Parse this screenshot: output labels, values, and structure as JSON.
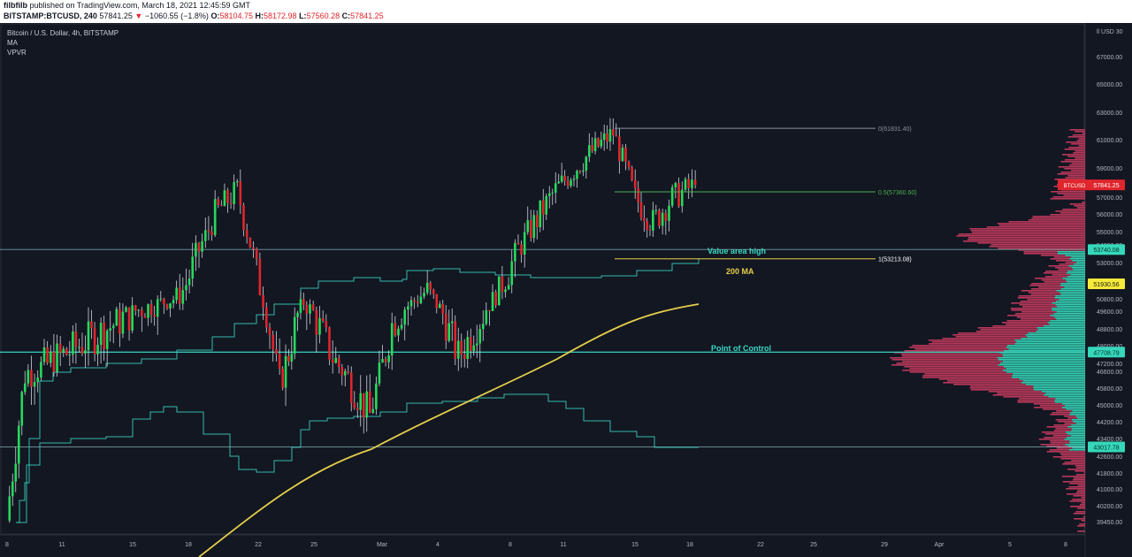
{
  "header": {
    "author": "filbfilb",
    "published_text": "published on TradingView.com, March 18, 2021 12:45:59 GMT",
    "symbol": "BITSTAMP:BTCUSD, 240",
    "last_price": "57841.25",
    "change": "−1060.55 (−1.8%)",
    "open_label": "O:",
    "open": "58104.75",
    "high_label": "H:",
    "high": "58172.98",
    "low_label": "L:",
    "low": "57560.28",
    "close_label": "C:",
    "close": "57841.25"
  },
  "legend": {
    "title": "Bitcoin / U.S. Dollar, 4h, BITSTAMP",
    "indicator_1": "MA",
    "indicator_2": "VPVR"
  },
  "annotations": {
    "fib_0": "0(61831.40)",
    "fib_05": "0.5(57360.60)",
    "fib_1": "1(53213.08)",
    "value_area_high": "Value area high",
    "ma_200": "200 MA",
    "point_of_control": "Point of Control"
  },
  "price_tags": {
    "btcusd_label": "BTCUSD",
    "btcusd_value": "57841.25",
    "vah_value": "53740.08",
    "ma_value": "51930.56",
    "poc_value": "47708.79",
    "val_value": "43017.78"
  },
  "colors": {
    "background": "#131722",
    "up": "#26d95a",
    "down": "#e0252d",
    "ma": "#e6cf4a",
    "teal": "#3ad6c1",
    "vp_red": "#c23a5e",
    "vp_teal": "#35d8ba"
  },
  "chart_data": {
    "type": "candlestick",
    "symbol": "BTCUSD",
    "timeframe": "4h",
    "y_axis_unit": "USD",
    "y_axis_ticks": [
      39450,
      40200,
      41000,
      41800,
      42600,
      43400,
      44200,
      45000,
      45800,
      46600,
      47200,
      48000,
      48800,
      49600,
      50800,
      52000,
      53000,
      54000,
      55000,
      56000,
      57000,
      59000,
      61000,
      63000,
      65000,
      67000
    ],
    "y_axis_tick_labels": [
      "39450.00",
      "40200.00",
      "41000.00",
      "41800.00",
      "42600.00",
      "43400.00",
      "44200.00",
      "45000.00",
      "45800.00",
      "46600.00",
      "47200.00",
      "48000.00",
      "48800.00",
      "49600.00",
      "50800.00",
      "52000.00",
      "53000.00",
      "54000.00",
      "55000.00",
      "56000.00",
      "57000.00",
      "59000.00",
      "61000.00",
      "63000.00",
      "65000.00",
      "67000.00"
    ],
    "y_axis_top_label": "ll USD 30",
    "x_axis_labels": [
      "8",
      "11",
      "15",
      "18",
      "22",
      "25",
      "Mar",
      "4",
      "8",
      "11",
      "15",
      "18",
      "22",
      "25",
      "29",
      "Apr",
      "5",
      "8"
    ],
    "fib_levels": [
      {
        "ratio": 0,
        "price": 61831.4
      },
      {
        "ratio": 0.5,
        "price": 57360.6
      },
      {
        "ratio": 1,
        "price": 53213.08
      }
    ],
    "horizontal_levels": {
      "value_area_high": 53740.08,
      "point_of_control": 47708.79,
      "value_area_low": 43017.78
    },
    "last_price": 57841.25,
    "ma_200_last": 51930.56,
    "close_path": [
      {
        "x": "Feb 8",
        "close": 39500
      },
      {
        "x": "Feb 10",
        "close": 46500
      },
      {
        "x": "Feb 13",
        "close": 47500
      },
      {
        "x": "Feb 16",
        "close": 49000
      },
      {
        "x": "Feb 18",
        "close": 51000
      },
      {
        "x": "Feb 20",
        "close": 56000
      },
      {
        "x": "Feb 21",
        "close": 57500
      },
      {
        "x": "Feb 22",
        "close": 52500
      },
      {
        "x": "Feb 23",
        "close": 46000
      },
      {
        "x": "Feb 24",
        "close": 50500
      },
      {
        "x": "Feb 26",
        "close": 47500
      },
      {
        "x": "Feb 28",
        "close": 44500
      },
      {
        "x": "Mar 1",
        "close": 49000
      },
      {
        "x": "Mar 3",
        "close": 51500
      },
      {
        "x": "Mar 5",
        "close": 47500
      },
      {
        "x": "Mar 7",
        "close": 49500
      },
      {
        "x": "Mar 9",
        "close": 54500
      },
      {
        "x": "Mar 11",
        "close": 57500
      },
      {
        "x": "Mar 13",
        "close": 60000
      },
      {
        "x": "Mar 14",
        "close": 61500
      },
      {
        "x": "Mar 15",
        "close": 57000
      },
      {
        "x": "Mar 16",
        "close": 55500
      },
      {
        "x": "Mar 17",
        "close": 57000
      },
      {
        "x": "Mar 18",
        "close": 57841.25
      }
    ]
  }
}
